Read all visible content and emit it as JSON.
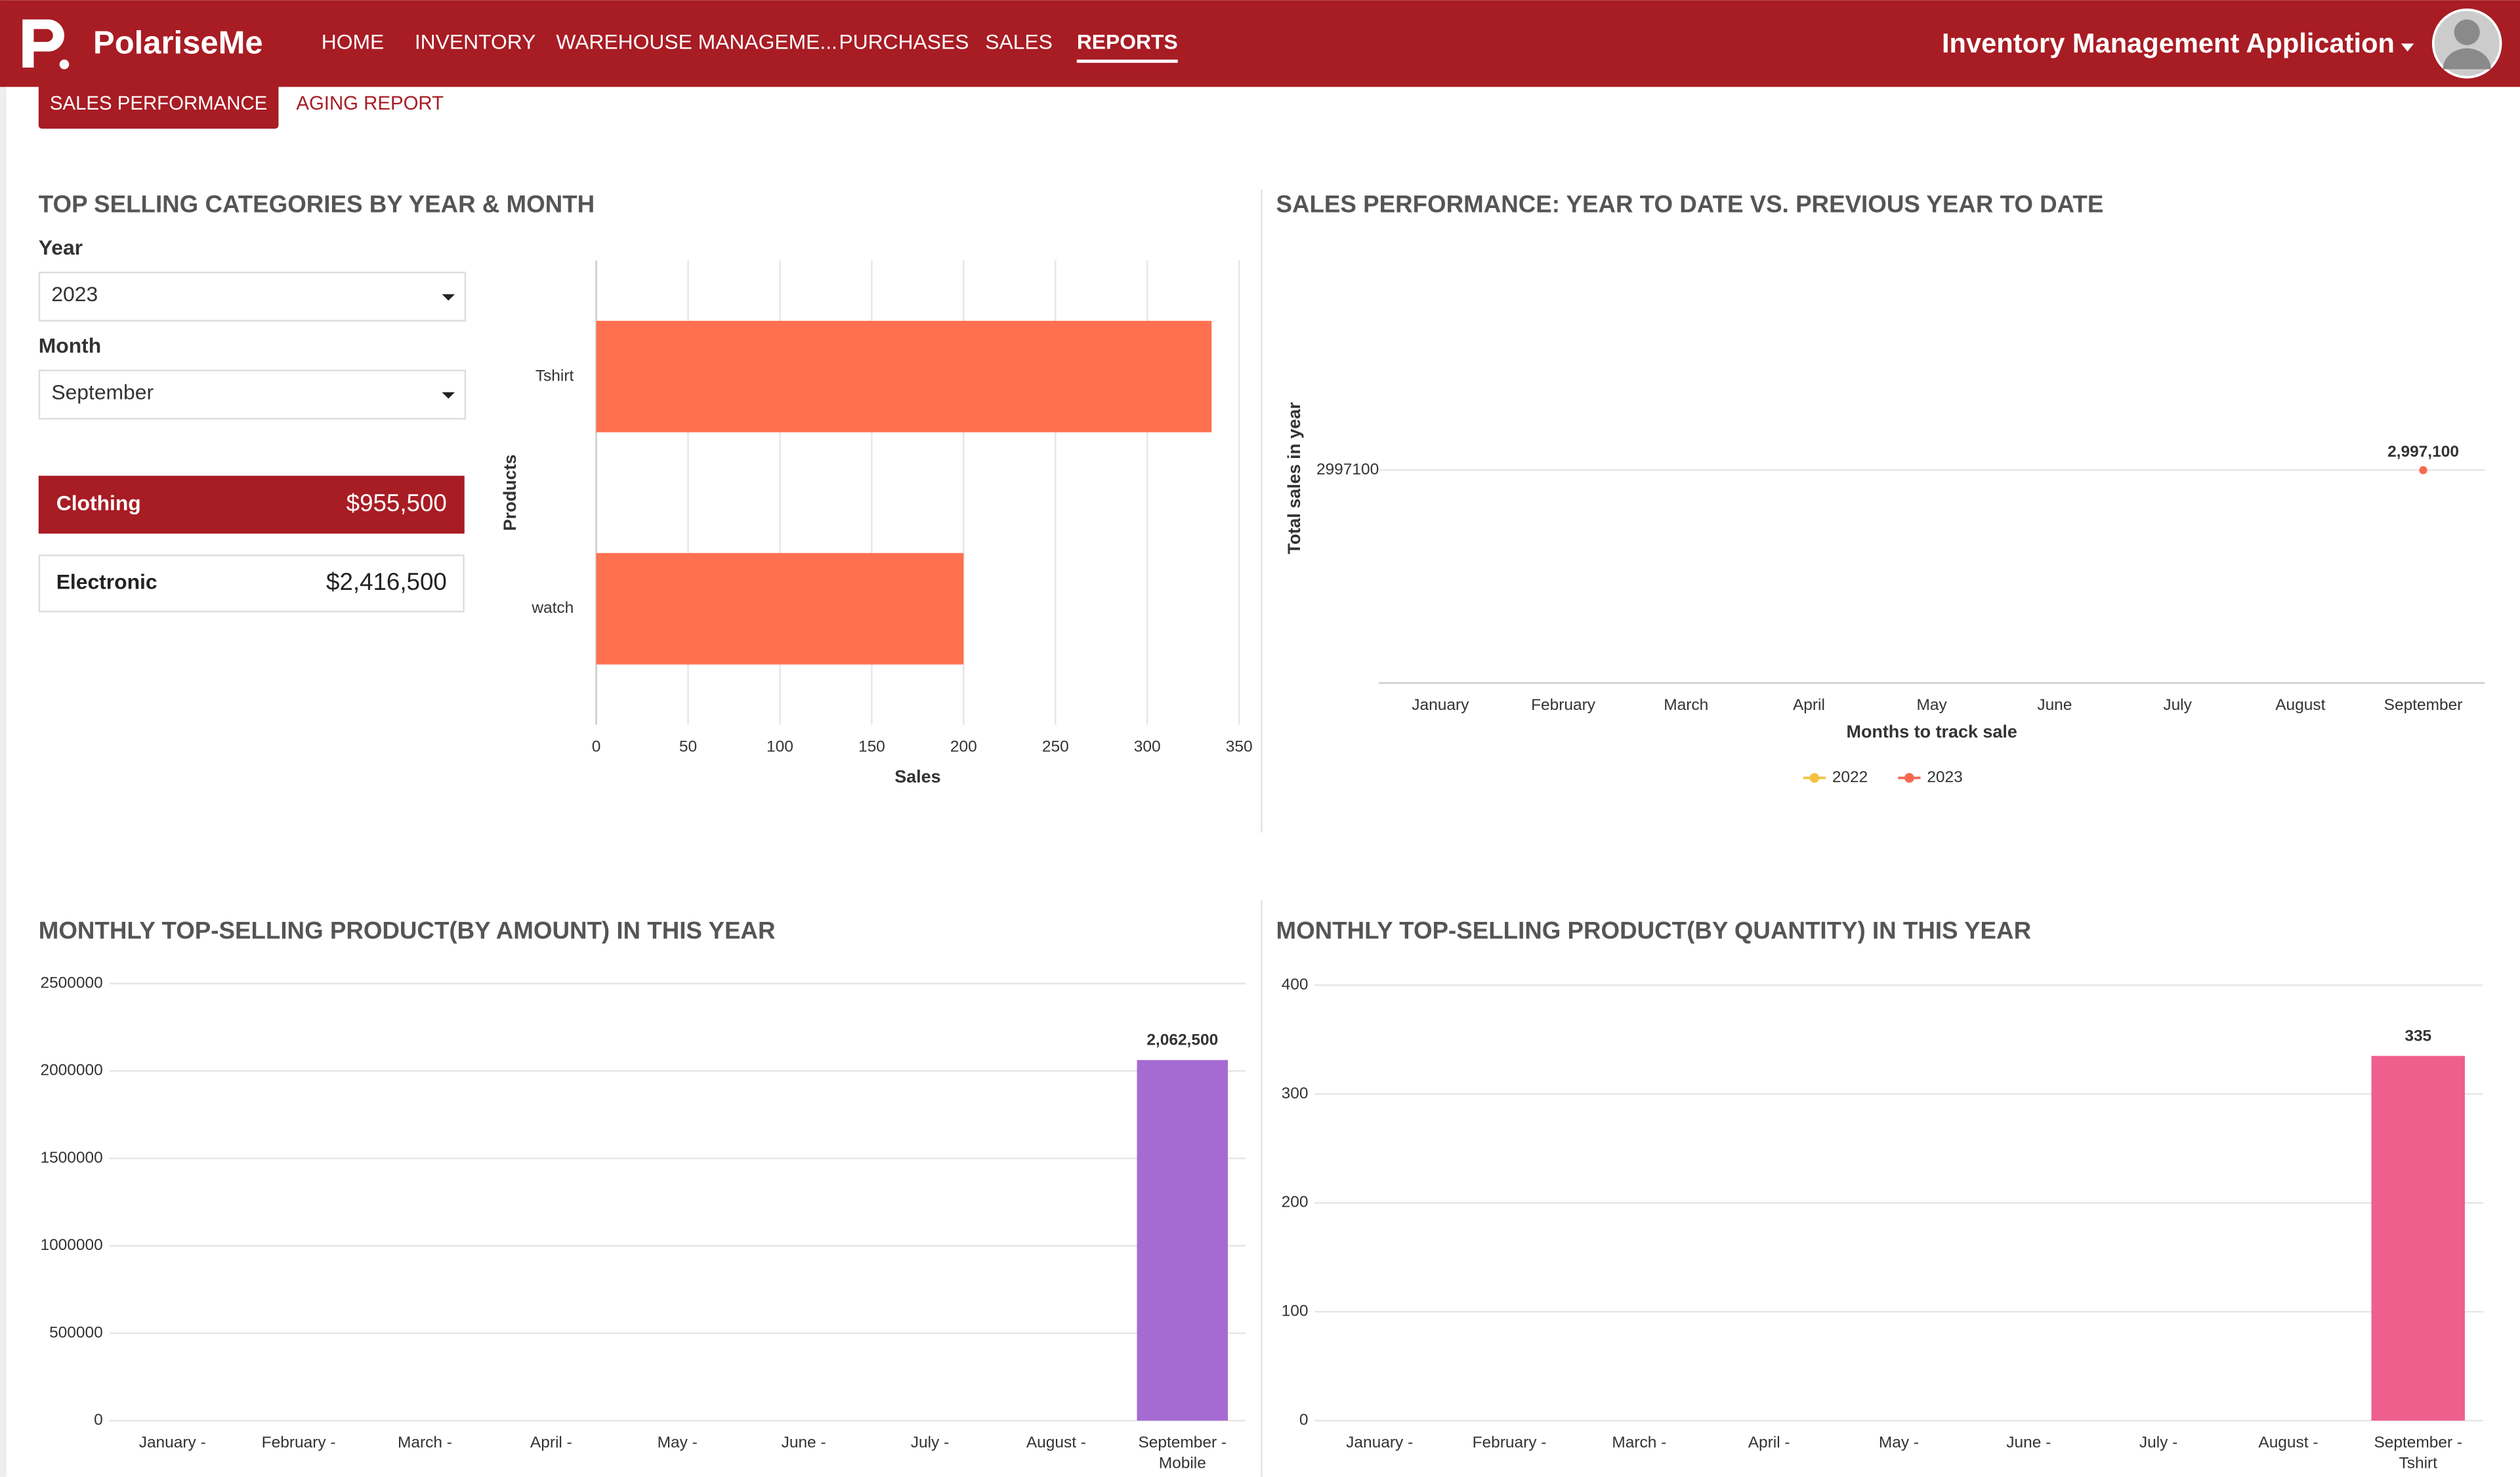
{
  "header": {
    "brand": "PolariseMe",
    "nav": [
      "HOME",
      "INVENTORY",
      "WAREHOUSE MANAGEME...",
      "PURCHASES",
      "SALES",
      "REPORTS"
    ],
    "active_nav": 5,
    "app_title": "Inventory Management Application"
  },
  "tabs": {
    "items": [
      "SALES PERFORMANCE",
      "AGING REPORT"
    ],
    "active": 0
  },
  "filters": {
    "year_label": "Year",
    "year": "2023",
    "month_label": "Month",
    "month": "September"
  },
  "category_totals": {
    "highlighted": 0,
    "items": [
      {
        "name": "Clothing",
        "amount": "$955,500"
      },
      {
        "name": "Electronic",
        "amount": "$2,416,500"
      }
    ]
  },
  "chart_data": [
    {
      "type": "hbar",
      "title": "TOP SELLING CATEGORIES BY YEAR & MONTH",
      "categories": [
        "Tshirt",
        "watch"
      ],
      "values": [
        335,
        200
      ],
      "color": "#ff7051",
      "xlim": [
        0,
        350
      ],
      "xticks": [
        0,
        50,
        100,
        150,
        200,
        250,
        300,
        350
      ],
      "xlabel": "Sales",
      "ylabel": "Products",
      "grid": true
    },
    {
      "type": "line",
      "title": "SALES PERFORMANCE: YEAR TO DATE VS. PREVIOUS YEAR TO DATE",
      "categories": [
        "January",
        "February",
        "March",
        "April",
        "May",
        "June",
        "July",
        "August",
        "September"
      ],
      "series": [
        {
          "name": "2022",
          "color": "#f5c242",
          "values": [
            null,
            null,
            null,
            null,
            null,
            null,
            null,
            null,
            null
          ]
        },
        {
          "name": "2023",
          "color": "#f4694f",
          "values": [
            null,
            null,
            null,
            null,
            null,
            null,
            null,
            null,
            2997100
          ],
          "value_labels": [
            null,
            null,
            null,
            null,
            null,
            null,
            null,
            null,
            "2,997,100"
          ]
        }
      ],
      "ylim": [
        0,
        5994200
      ],
      "yticks": [
        2997100
      ],
      "xlabel": "Months to track sale",
      "ylabel": "Total sales in year",
      "legend": "bottom",
      "grid": true
    },
    {
      "type": "bar",
      "title": "MONTHLY TOP-SELLING PRODUCT(BY AMOUNT) IN THIS YEAR",
      "categories": [
        "January -",
        "February -",
        "March -",
        "April -",
        "May -",
        "June -",
        "July -",
        "August -",
        "September -"
      ],
      "products": [
        null,
        null,
        null,
        null,
        null,
        null,
        null,
        null,
        "Mobile"
      ],
      "values": [
        null,
        null,
        null,
        null,
        null,
        null,
        null,
        null,
        2062500
      ],
      "value_labels": [
        null,
        null,
        null,
        null,
        null,
        null,
        null,
        null,
        "2,062,500"
      ],
      "color": "#a66bd3",
      "ylim": [
        0,
        2500000
      ],
      "yticks": [
        0,
        500000,
        1000000,
        1500000,
        2000000,
        2500000
      ],
      "grid": true
    },
    {
      "type": "bar",
      "title": "MONTHLY TOP-SELLING PRODUCT(BY QUANTITY) IN THIS YEAR",
      "categories": [
        "January -",
        "February -",
        "March -",
        "April -",
        "May -",
        "June -",
        "July -",
        "August -",
        "September -"
      ],
      "products": [
        null,
        null,
        null,
        null,
        null,
        null,
        null,
        null,
        "Tshirt"
      ],
      "values": [
        null,
        null,
        null,
        null,
        null,
        null,
        null,
        null,
        335
      ],
      "color": "#ef5f8e",
      "ylim": [
        0,
        400
      ],
      "yticks": [
        0,
        100,
        200,
        300,
        400
      ],
      "grid": true
    }
  ]
}
